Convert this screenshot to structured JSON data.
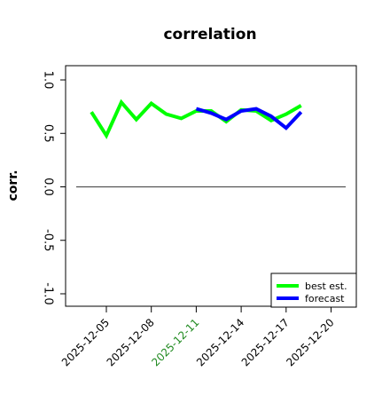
{
  "chart_data": {
    "type": "line",
    "title": "correlation",
    "ylabel": "corr.",
    "xlabel": "",
    "ylim": [
      -1.05,
      1.05
    ],
    "y_ticks": [
      -1.0,
      -0.5,
      0.0,
      0.5,
      1.0
    ],
    "y_tick_labels": [
      "-1.0",
      "-0.5",
      "0.0",
      "0.5",
      "1.0"
    ],
    "x_ticks": [
      "2025-12-05",
      "2025-12-08",
      "2025-12-11",
      "2025-12-14",
      "2025-12-17",
      "2025-12-20"
    ],
    "highlighted_tick": "2025-12-11",
    "zero_line": 0,
    "legend_position": "bottom-right",
    "grid": false,
    "series": [
      {
        "name": "best est.",
        "color": "#00ff00",
        "points": [
          {
            "x": "2025-12-04",
            "y": 0.7
          },
          {
            "x": "2025-12-05",
            "y": 0.48
          },
          {
            "x": "2025-12-06",
            "y": 0.79
          },
          {
            "x": "2025-12-07",
            "y": 0.63
          },
          {
            "x": "2025-12-08",
            "y": 0.78
          },
          {
            "x": "2025-12-09",
            "y": 0.68
          },
          {
            "x": "2025-12-10",
            "y": 0.64
          },
          {
            "x": "2025-12-11",
            "y": 0.71
          },
          {
            "x": "2025-12-12",
            "y": 0.71
          },
          {
            "x": "2025-12-13",
            "y": 0.61
          },
          {
            "x": "2025-12-14",
            "y": 0.72
          },
          {
            "x": "2025-12-15",
            "y": 0.71
          },
          {
            "x": "2025-12-16",
            "y": 0.62
          },
          {
            "x": "2025-12-17",
            "y": 0.68
          },
          {
            "x": "2025-12-18",
            "y": 0.76
          }
        ]
      },
      {
        "name": "forecast",
        "color": "#0000ff",
        "points": [
          {
            "x": "2025-12-11",
            "y": 0.73
          },
          {
            "x": "2025-12-12",
            "y": 0.69
          },
          {
            "x": "2025-12-13",
            "y": 0.63
          },
          {
            "x": "2025-12-14",
            "y": 0.71
          },
          {
            "x": "2025-12-15",
            "y": 0.73
          },
          {
            "x": "2025-12-16",
            "y": 0.66
          },
          {
            "x": "2025-12-17",
            "y": 0.55
          },
          {
            "x": "2025-12-18",
            "y": 0.7
          }
        ]
      }
    ],
    "colors": {
      "axis": "#000000",
      "zero_line": "#555555",
      "tick_label": "#000000",
      "highlight_tick_label": "#228b22"
    }
  }
}
